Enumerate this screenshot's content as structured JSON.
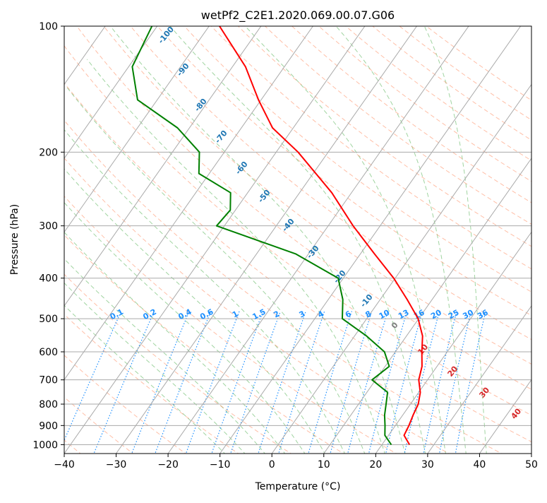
{
  "chart_data": {
    "type": "line",
    "title": "wetPf2_C2E1.2020.069.00.07.G06",
    "xlabel": "Temperature (°C)",
    "ylabel": "Pressure (hPa)",
    "xlim": [
      -40,
      50
    ],
    "ylim": [
      1050,
      100
    ],
    "y_scale": "log",
    "x_ticks": [
      "−40",
      "−30",
      "−20",
      "−10",
      "0",
      "10",
      "20",
      "30",
      "40",
      "50"
    ],
    "y_ticks": [
      "100",
      "200",
      "300",
      "400",
      "500",
      "600",
      "700",
      "800",
      "900",
      "1000"
    ],
    "grid": true,
    "series": [
      {
        "role": "temperature",
        "color": "#ff0000",
        "points": [
          {
            "p": 1000,
            "t": 25.3
          },
          {
            "p": 950,
            "t": 23.0
          },
          {
            "p": 900,
            "t": 22.6
          },
          {
            "p": 850,
            "t": 22.0
          },
          {
            "p": 800,
            "t": 21.5
          },
          {
            "p": 750,
            "t": 20.3
          },
          {
            "p": 700,
            "t": 18.3
          },
          {
            "p": 650,
            "t": 17.1
          },
          {
            "p": 600,
            "t": 15.1
          },
          {
            "p": 550,
            "t": 13.1
          },
          {
            "p": 500,
            "t": 9.9
          },
          {
            "p": 450,
            "t": 5.2
          },
          {
            "p": 400,
            "t": -0.3
          },
          {
            "p": 350,
            "t": -7.3
          },
          {
            "p": 300,
            "t": -15.2
          },
          {
            "p": 250,
            "t": -23.8
          },
          {
            "p": 200,
            "t": -35.8
          },
          {
            "p": 175,
            "t": -44.0
          },
          {
            "p": 150,
            "t": -50.5
          },
          {
            "p": 125,
            "t": -57.5
          },
          {
            "p": 100,
            "t": -68.0
          }
        ]
      },
      {
        "role": "dewpoint",
        "color": "#008000",
        "points": [
          {
            "p": 1000,
            "t": 21.8
          },
          {
            "p": 950,
            "t": 19.3
          },
          {
            "p": 900,
            "t": 18.0
          },
          {
            "p": 850,
            "t": 16.5
          },
          {
            "p": 800,
            "t": 15.3
          },
          {
            "p": 750,
            "t": 14.0
          },
          {
            "p": 700,
            "t": 9.3
          },
          {
            "p": 650,
            "t": 10.8
          },
          {
            "p": 600,
            "t": 7.9
          },
          {
            "p": 550,
            "t": 2.3
          },
          {
            "p": 500,
            "t": -4.7
          },
          {
            "p": 450,
            "t": -7.2
          },
          {
            "p": 400,
            "t": -11.0
          },
          {
            "p": 350,
            "t": -22.5
          },
          {
            "p": 300,
            "t": -41.5
          },
          {
            "p": 275,
            "t": -41.0
          },
          {
            "p": 250,
            "t": -43.3
          },
          {
            "p": 225,
            "t": -52.0
          },
          {
            "p": 200,
            "t": -54.8
          },
          {
            "p": 175,
            "t": -62.3
          },
          {
            "p": 150,
            "t": -73.8
          },
          {
            "p": 125,
            "t": -79.3
          },
          {
            "p": 100,
            "t": -81.0
          }
        ]
      }
    ],
    "dry_adiabat_labels": [
      "-100",
      "-90",
      "-80",
      "-70",
      "-60",
      "-50",
      "-40",
      "-30",
      "-20",
      "-10",
      "0",
      "10",
      "20",
      "30",
      "40"
    ],
    "mixing_ratio_labels": [
      "0.1",
      "0.2",
      "0.4",
      "0.6",
      "1",
      "1.5",
      "2",
      "3",
      "4",
      "6",
      "8",
      "10",
      "13",
      "16",
      "20",
      "25",
      "30",
      "36"
    ],
    "colors": {
      "isotherm": "#aaaaaa",
      "dry_adiabat": "#ff7f50",
      "moist_adiabat": "#2ca02c",
      "mixing_ratio": "#1e90ff",
      "dry_label_cold": "#1f77b4",
      "dry_label_warm": "#d62728",
      "dry_label_zero": "#7f7f7f"
    }
  }
}
